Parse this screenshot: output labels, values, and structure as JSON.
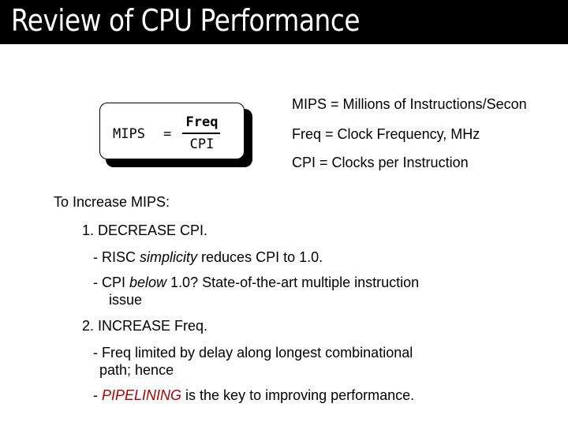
{
  "title": "Review of CPU Performance",
  "formula": {
    "lhs": "MIPS",
    "equals": "=",
    "numerator": "Freq",
    "denominator": "CPI"
  },
  "definitions": [
    "MIPS = Millions of Instructions/Secon",
    "Freq = Clock Frequency, MHz",
    "CPI = Clocks per Instruction"
  ],
  "heading": "To Increase MIPS:",
  "item1": "1. DECREASE CPI.",
  "sub1a": {
    "pre": "- RISC ",
    "em": "simplicity",
    "post": " reduces CPI to 1.0."
  },
  "sub1b": {
    "pre": "- CPI ",
    "em": "below",
    "post": " 1.0? State-of-the-art multiple instruction",
    "cont": "issue"
  },
  "item2": "2. INCREASE Freq.",
  "sub2a": {
    "line1": "- Freq limited by delay along longest combinational",
    "line2": "path; hence"
  },
  "sub2b": {
    "pre": "- ",
    "highlight": "PIPELINING",
    "post": " is the key to improving performance."
  },
  "colors": {
    "title_bg": "#000000",
    "title_text": "#ffffff",
    "highlight": "#b00000"
  }
}
